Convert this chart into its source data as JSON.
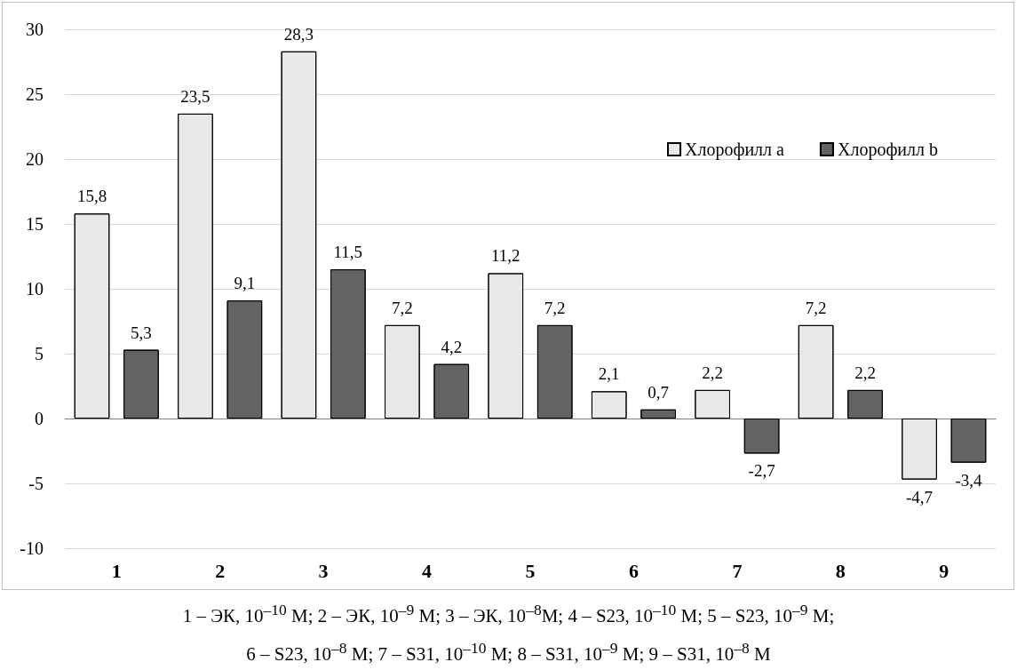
{
  "chart_data": {
    "type": "bar",
    "categories": [
      "1",
      "2",
      "3",
      "4",
      "5",
      "6",
      "7",
      "8",
      "9"
    ],
    "series": [
      {
        "name": "Хлорофилл a",
        "color": "#e8e8e8",
        "values": [
          15.8,
          23.5,
          28.3,
          7.2,
          11.2,
          2.1,
          2.2,
          7.2,
          -4.7
        ],
        "value_labels": [
          "15,8",
          "23,5",
          "28,3",
          "7,2",
          "11,2",
          "2,1",
          "2,2",
          "7,2",
          "-4,7"
        ]
      },
      {
        "name": "Хлорофилл b",
        "color": "#6e6e6e",
        "values": [
          5.3,
          9.1,
          11.5,
          4.2,
          7.2,
          0.7,
          -2.7,
          2.2,
          -3.4
        ],
        "value_labels": [
          "5,3",
          "9,1",
          "11,5",
          "4,2",
          "7,2",
          "0,7",
          "-2,7",
          "2,2",
          "-3,4"
        ]
      }
    ],
    "ylim": [
      -10,
      30
    ],
    "yticks": [
      -10,
      -5,
      0,
      5,
      10,
      15,
      20,
      25,
      30
    ],
    "grid": "y",
    "legend": "top right",
    "annotations": [
      "1 – ЭК, 10$^{–10}$ М; 2 – ЭК, 10$^{–9}$ М; 3 – ЭК, 10$^{–8}$М; 4 – S23, 10$^{–10}$ М; 5 – S23, 10$^{–9}$ М;",
      "6 – S23, 10$^{–8}$ М; 7 – S31, 10$^{–10}$ М; 8 – S31, 10$^{–9}$ М; 9 – S31, 10$^{–8}$ М"
    ]
  }
}
